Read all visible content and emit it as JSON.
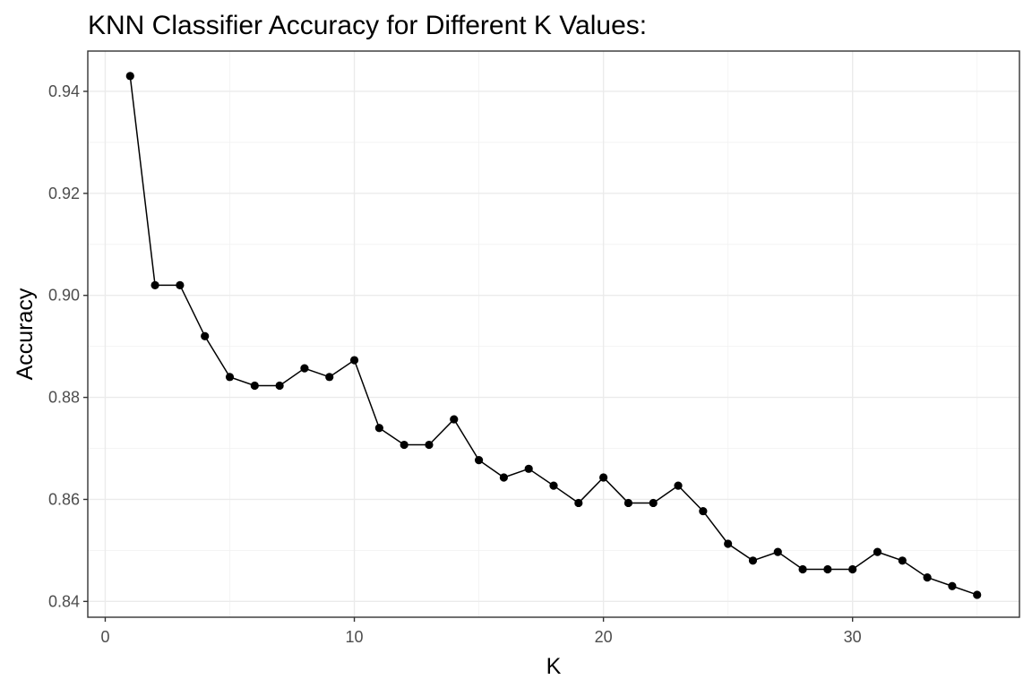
{
  "chart_data": {
    "type": "line",
    "title": "KNN Classifier Accuracy for Different K Values:",
    "xlabel": "K",
    "ylabel": "Accuracy",
    "xlim": [
      -0.7,
      36.7
    ],
    "ylim": [
      0.8369,
      0.9479
    ],
    "x_ticks": [
      0,
      10,
      20,
      30
    ],
    "x_tick_labels": [
      "0",
      "10",
      "20",
      "30"
    ],
    "y_ticks": [
      0.84,
      0.86,
      0.88,
      0.9,
      0.92,
      0.94
    ],
    "y_tick_labels": [
      "0.84",
      "0.86",
      "0.88",
      "0.90",
      "0.92",
      "0.94"
    ],
    "grid": true,
    "legend": "none",
    "series": [
      {
        "color": "#000000",
        "x": [
          1,
          2,
          3,
          4,
          5,
          6,
          7,
          8,
          9,
          10,
          11,
          12,
          13,
          14,
          15,
          16,
          17,
          18,
          19,
          20,
          21,
          22,
          23,
          24,
          25,
          26,
          27,
          28,
          29,
          30,
          31,
          32,
          33,
          34,
          35
        ],
        "y": [
          0.943,
          0.902,
          0.902,
          0.892,
          0.884,
          0.8823,
          0.8823,
          0.8857,
          0.884,
          0.8873,
          0.874,
          0.8707,
          0.8707,
          0.8757,
          0.8677,
          0.8643,
          0.866,
          0.8627,
          0.8593,
          0.8643,
          0.8593,
          0.8593,
          0.8627,
          0.8577,
          0.8513,
          0.848,
          0.8497,
          0.8463,
          0.8463,
          0.8463,
          0.8497,
          0.848,
          0.8447,
          0.843,
          0.8413
        ]
      }
    ]
  }
}
